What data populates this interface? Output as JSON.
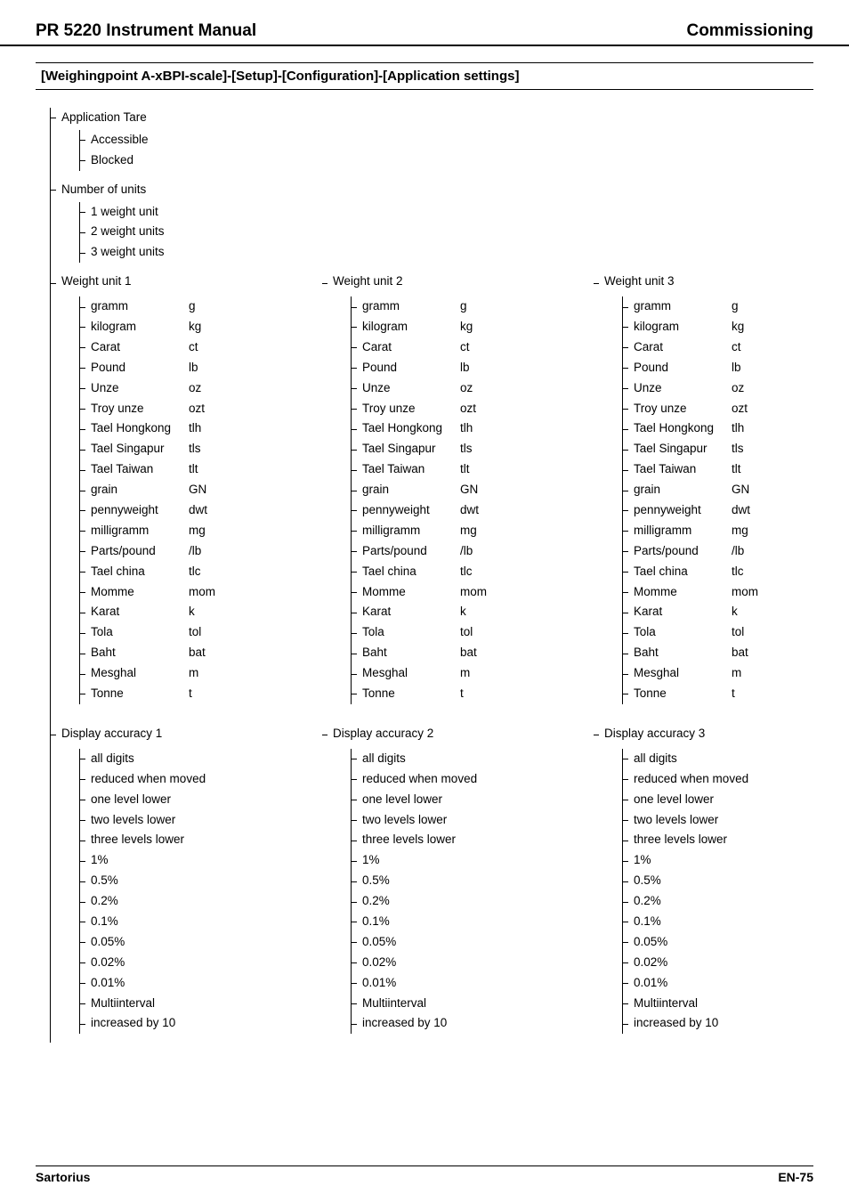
{
  "header": {
    "left": "PR 5220 Instrument Manual",
    "right": "Commissioning"
  },
  "breadcrumb": "[Weighingpoint A-xBPI-scale]-[Setup]-[Configuration]-[Application settings]",
  "sections": {
    "application_tare": {
      "label": "Application Tare",
      "items": [
        "Accessible",
        "Blocked"
      ]
    },
    "number_of_units": {
      "label": "Number of units",
      "items": [
        "1 weight unit",
        "2 weight units",
        "3 weight units"
      ]
    }
  },
  "weight_unit_columns": [
    {
      "heading": "Weight unit 1"
    },
    {
      "heading": "Weight unit 2"
    },
    {
      "heading": "Weight unit 3"
    }
  ],
  "weight_units": [
    {
      "name": "gramm",
      "abbr": "g"
    },
    {
      "name": "kilogram",
      "abbr": "kg"
    },
    {
      "name": "Carat",
      "abbr": "ct"
    },
    {
      "name": "Pound",
      "abbr": "lb"
    },
    {
      "name": "Unze",
      "abbr": "oz"
    },
    {
      "name": "Troy unze",
      "abbr": "ozt"
    },
    {
      "name": "Tael Hongkong",
      "abbr": "tlh"
    },
    {
      "name": "Tael Singapur",
      "abbr": "tls"
    },
    {
      "name": "Tael Taiwan",
      "abbr": "tlt"
    },
    {
      "name": "grain",
      "abbr": "GN"
    },
    {
      "name": "pennyweight",
      "abbr": "dwt"
    },
    {
      "name": "milligramm",
      "abbr": "mg"
    },
    {
      "name": "Parts/pound",
      "abbr": "/lb"
    },
    {
      "name": "Tael china",
      "abbr": "tlc"
    },
    {
      "name": "Momme",
      "abbr": "mom"
    },
    {
      "name": "Karat",
      "abbr": "k"
    },
    {
      "name": "Tola",
      "abbr": "tol"
    },
    {
      "name": "Baht",
      "abbr": "bat"
    },
    {
      "name": "Mesghal",
      "abbr": "m"
    },
    {
      "name": "Tonne",
      "abbr": "t"
    }
  ],
  "display_accuracy_columns": [
    {
      "heading": "Display accuracy 1"
    },
    {
      "heading": "Display accuracy 2"
    },
    {
      "heading": "Display accuracy 3"
    }
  ],
  "display_accuracy_items": [
    "all digits",
    "reduced when moved",
    "one level lower",
    "two levels lower",
    "three levels lower",
    "1%",
    "0.5%",
    "0.2%",
    "0.1%",
    "0.05%",
    "0.02%",
    "0.01%",
    "Multiinterval",
    "increased by 10"
  ],
  "footer": {
    "left": "Sartorius",
    "right": "EN-75"
  }
}
